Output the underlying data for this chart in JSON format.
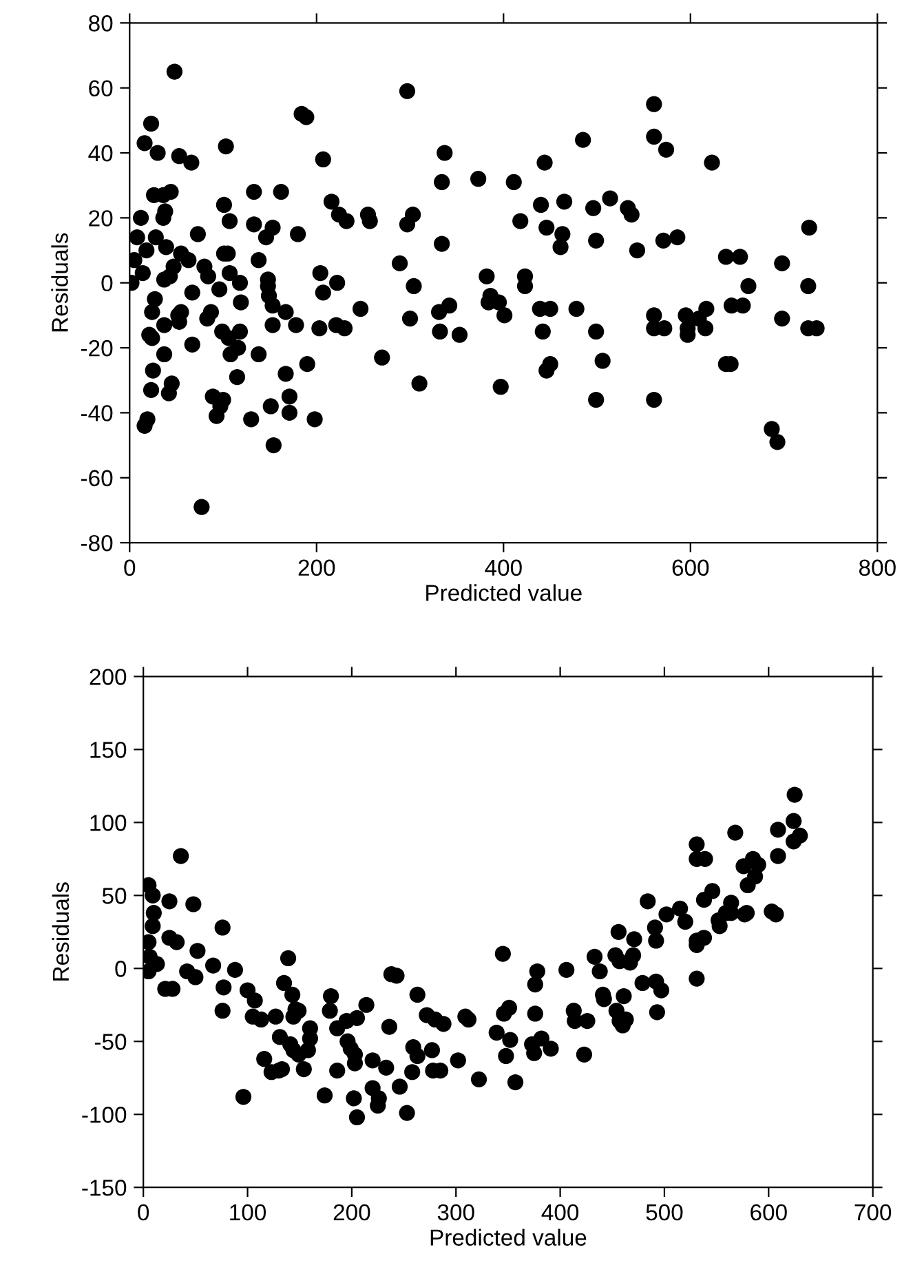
{
  "chart_data": [
    {
      "type": "scatter",
      "xlabel": "Predicted value",
      "ylabel": "Residuals",
      "marker": "circle",
      "grid": false,
      "legend": false,
      "xlim": [
        0,
        800
      ],
      "ylim": [
        -80,
        80
      ],
      "xticks": [
        0,
        200,
        400,
        600,
        800
      ],
      "yticks": [
        -80,
        -60,
        -40,
        -20,
        0,
        20,
        40,
        60,
        80
      ],
      "series": [
        {
          "color": "#000000",
          "x": [
            48,
            23,
            16,
            30,
            53,
            66,
            103,
            184,
            189,
            207,
            297,
            337,
            334,
            373,
            411,
            444,
            485,
            561,
            561,
            574,
            623,
            26,
            36,
            44,
            133,
            162,
            101,
            107,
            133,
            153,
            146,
            73,
            216,
            224,
            232,
            255,
            257,
            297,
            303,
            334,
            180,
            418,
            440,
            465,
            446,
            463,
            461,
            496,
            499,
            514,
            533,
            537,
            543,
            571,
            586,
            638,
            653,
            698,
            727,
            726,
            698,
            726,
            735,
            687,
            693,
            662,
            656,
            644,
            638,
            643,
            617,
            609,
            595,
            597,
            597,
            616,
            572,
            561,
            561,
            561,
            499,
            506,
            499,
            478,
            450,
            439,
            442,
            450,
            446,
            423,
            423,
            397,
            382,
            386,
            384,
            395,
            401,
            342,
            331,
            332,
            353,
            310,
            304,
            300,
            289,
            270,
            247,
            222,
            204,
            207,
            221,
            230,
            203,
            198,
            190,
            178,
            167,
            153,
            149,
            148,
            148,
            153,
            171,
            171,
            167,
            154,
            151,
            130,
            138,
            138,
            118,
            119,
            101,
            105,
            107,
            96,
            99,
            106,
            108,
            116,
            118,
            115,
            89,
            100,
            97,
            93,
            77,
            67,
            67,
            84,
            80,
            83,
            87,
            55,
            63,
            52,
            55,
            53,
            37,
            37,
            27,
            24,
            21,
            24,
            25,
            23,
            45,
            42,
            19,
            16,
            47,
            43,
            37,
            39,
            38,
            36,
            2,
            5,
            8,
            12,
            14,
            18,
            28
          ],
          "values": [
            65,
            49,
            43,
            40,
            39,
            37,
            42,
            52,
            51,
            38,
            59,
            40,
            31,
            32,
            31,
            37,
            44,
            55,
            45,
            41,
            37,
            27,
            27,
            28,
            28,
            28,
            24,
            19,
            18,
            17,
            14,
            15,
            25,
            21,
            19,
            21,
            19,
            18,
            21,
            12,
            15,
            19,
            24,
            25,
            17,
            15,
            11,
            23,
            13,
            26,
            23,
            21,
            10,
            13,
            14,
            8,
            8,
            6,
            17,
            -1,
            -11,
            -14,
            -14,
            -45,
            -49,
            -1,
            -7,
            -7,
            -25,
            -25,
            -8,
            -11,
            -10,
            -14,
            -16,
            -14,
            -14,
            -10,
            -14,
            -36,
            -15,
            -24,
            -36,
            -8,
            -8,
            -8,
            -15,
            -25,
            -27,
            2,
            -1,
            -32,
            2,
            -4,
            -6,
            -6,
            -10,
            -7,
            -9,
            -15,
            -16,
            -31,
            -1,
            -11,
            6,
            -23,
            -8,
            0,
            3,
            -3,
            -13,
            -14,
            -14,
            -42,
            -25,
            -13,
            -9,
            -7,
            -4,
            1,
            -1,
            -13,
            -35,
            -40,
            -28,
            -50,
            -38,
            -42,
            -22,
            7,
            0,
            -6,
            9,
            9,
            3,
            -2,
            -15,
            -17,
            -22,
            -20,
            -15,
            -29,
            -35,
            -36,
            -38,
            -41,
            -69,
            -19,
            -3,
            2,
            5,
            -11,
            -9,
            9,
            7,
            -10,
            -9,
            -12,
            -13,
            -22,
            -5,
            -9,
            -16,
            -17,
            -27,
            -33,
            -31,
            -34,
            -42,
            -44,
            5,
            2,
            1,
            11,
            22,
            20,
            0,
            7,
            14,
            20,
            3,
            10,
            14
          ]
        }
      ]
    },
    {
      "type": "scatter",
      "xlabel": "Predicted value",
      "ylabel": "Residuals",
      "marker": "circle",
      "grid": false,
      "legend": false,
      "xlim": [
        0,
        700
      ],
      "ylim": [
        -150,
        200
      ],
      "xticks": [
        0,
        100,
        200,
        300,
        400,
        500,
        600,
        700
      ],
      "yticks": [
        -150,
        -100,
        -50,
        0,
        50,
        100,
        150,
        200
      ],
      "series": [
        {
          "color": "#000000",
          "x": [
            36,
            5,
            9,
            25,
            48,
            10,
            9,
            76,
            5,
            25,
            32,
            52,
            6,
            5,
            13,
            42,
            50,
            67,
            88,
            21,
            28,
            77,
            76,
            96,
            100,
            107,
            105,
            113,
            127,
            131,
            116,
            123,
            130,
            133,
            139,
            135,
            143,
            146,
            144,
            149,
            141,
            144,
            149,
            154,
            160,
            160,
            158,
            174,
            180,
            179,
            186,
            186,
            195,
            205,
            196,
            199,
            203,
            203,
            202,
            205,
            214,
            220,
            220,
            226,
            225,
            233,
            236,
            238,
            243,
            246,
            253,
            259,
            263,
            258,
            263,
            272,
            280,
            288,
            277,
            278,
            285,
            302,
            309,
            312,
            322,
            339,
            345,
            346,
            351,
            352,
            348,
            357,
            378,
            376,
            376,
            373,
            382,
            375,
            391,
            406,
            413,
            414,
            426,
            423,
            433,
            438,
            441,
            442,
            453,
            457,
            467,
            470,
            456,
            471,
            454,
            457,
            460,
            461,
            463,
            479,
            484,
            491,
            492,
            492,
            497,
            493,
            502,
            515,
            520,
            531,
            531,
            539,
            538,
            546,
            531,
            531,
            538,
            531,
            552,
            553,
            564,
            564,
            559,
            568,
            576,
            585,
            590,
            587,
            580,
            577,
            579,
            603,
            607,
            609,
            609,
            625,
            624,
            630,
            624
          ],
          "values": [
            77,
            57,
            50,
            46,
            44,
            38,
            29,
            28,
            18,
            21,
            18,
            12,
            8,
            -2,
            3,
            -2,
            -6,
            2,
            -1,
            -14,
            -14,
            -13,
            -29,
            -88,
            -15,
            -22,
            -33,
            -35,
            -33,
            -47,
            -62,
            -71,
            -70,
            -69,
            7,
            -10,
            -18,
            -28,
            -33,
            -29,
            -52,
            -56,
            -59,
            -69,
            -41,
            -48,
            -56,
            -87,
            -19,
            -29,
            -41,
            -70,
            -36,
            -34,
            -50,
            -55,
            -59,
            -65,
            -89,
            -102,
            -25,
            -63,
            -82,
            -89,
            -94,
            -68,
            -40,
            -4,
            -5,
            -81,
            -99,
            -54,
            -60,
            -71,
            -18,
            -32,
            -35,
            -38,
            -56,
            -70,
            -70,
            -63,
            -33,
            -35,
            -76,
            -44,
            10,
            -31,
            -27,
            -49,
            -60,
            -78,
            -2,
            -11,
            -31,
            -52,
            -48,
            -58,
            -55,
            -1,
            -29,
            -36,
            -36,
            -59,
            8,
            -2,
            -18,
            -21,
            9,
            5,
            4,
            9,
            25,
            20,
            -29,
            -36,
            -39,
            -19,
            -35,
            -10,
            46,
            28,
            19,
            -9,
            -15,
            -30,
            37,
            41,
            32,
            85,
            75,
            75,
            47,
            53,
            19,
            16,
            21,
            -7,
            33,
            29,
            45,
            38,
            38,
            93,
            70,
            75,
            71,
            63,
            57,
            37,
            38,
            39,
            37,
            77,
            95,
            119,
            101,
            91,
            87
          ]
        }
      ]
    }
  ]
}
